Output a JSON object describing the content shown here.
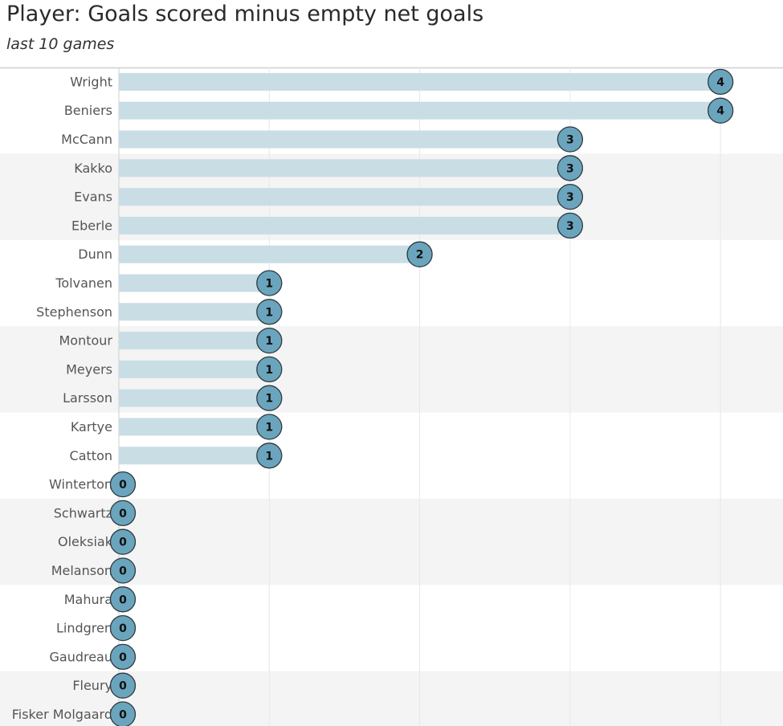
{
  "chart_data": {
    "type": "bar",
    "orientation": "horizontal",
    "title": "Player: Goals scored minus empty net goals",
    "subtitle": "last 10 games",
    "xlabel": "",
    "ylabel": "",
    "xlim": [
      0,
      4.2
    ],
    "grid": true,
    "categories": [
      "Wright",
      "Beniers",
      "McCann",
      "Kakko",
      "Evans",
      "Eberle",
      "Dunn",
      "Tolvanen",
      "Stephenson",
      "Montour",
      "Meyers",
      "Larsson",
      "Kartye",
      "Catton",
      "Winterton",
      "Schwartz",
      "Oleksiak",
      "Melanson",
      "Mahura",
      "Lindgren",
      "Gaudreau",
      "Fleury",
      "Fisker Molgaard"
    ],
    "values": [
      4,
      4,
      3,
      3,
      3,
      3,
      2,
      1,
      1,
      1,
      1,
      1,
      1,
      1,
      0,
      0,
      0,
      0,
      0,
      0,
      0,
      0,
      0
    ],
    "colors": {
      "bar": "#c9dde5",
      "marker": "#6aa5bd",
      "marker_stroke": "#2f3a40",
      "band": "#f4f4f4",
      "grid": "#e8e8e8"
    }
  }
}
